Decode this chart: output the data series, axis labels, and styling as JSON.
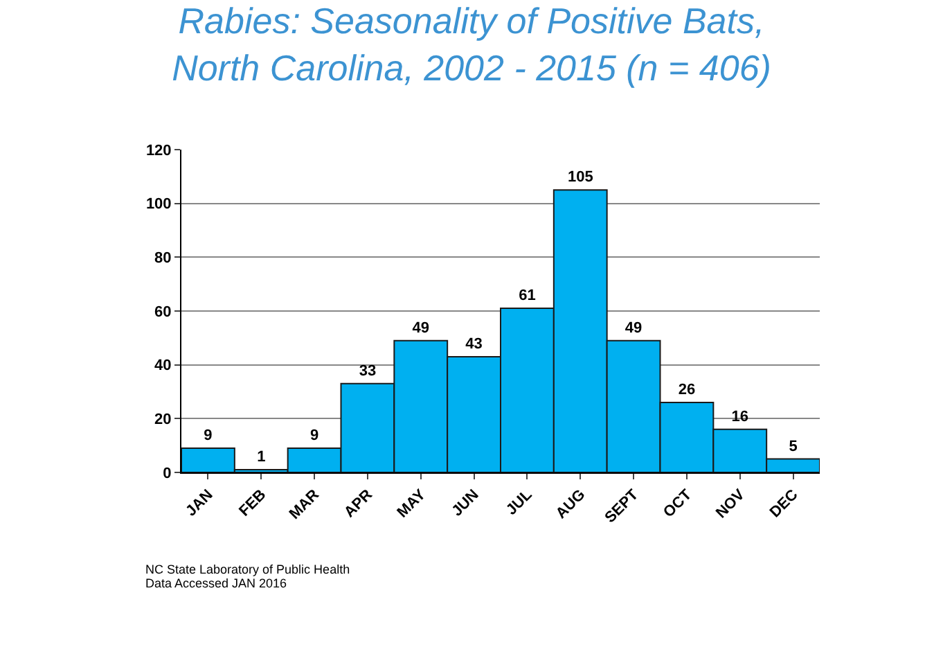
{
  "chart_data": {
    "type": "bar",
    "title": "Rabies: Seasonality of Positive Bats,\nNorth Carolina, 2002 - 2015 (n = 406)",
    "categories": [
      "JAN",
      "FEB",
      "MAR",
      "APR",
      "MAY",
      "JUN",
      "JUL",
      "AUG",
      "SEPT",
      "OCT",
      "NOV",
      "DEC"
    ],
    "values": [
      9,
      1,
      9,
      33,
      49,
      43,
      61,
      105,
      49,
      26,
      16,
      5
    ],
    "color": "#00b0f0",
    "data_labels": true,
    "grid": "y",
    "legend": false,
    "ylim": [
      0,
      120
    ],
    "yticks": [
      0,
      20,
      40,
      60,
      80,
      100,
      120
    ],
    "annotations": [
      "NC State Laboratory of Public Health",
      "Data Accessed JAN 2016"
    ]
  }
}
